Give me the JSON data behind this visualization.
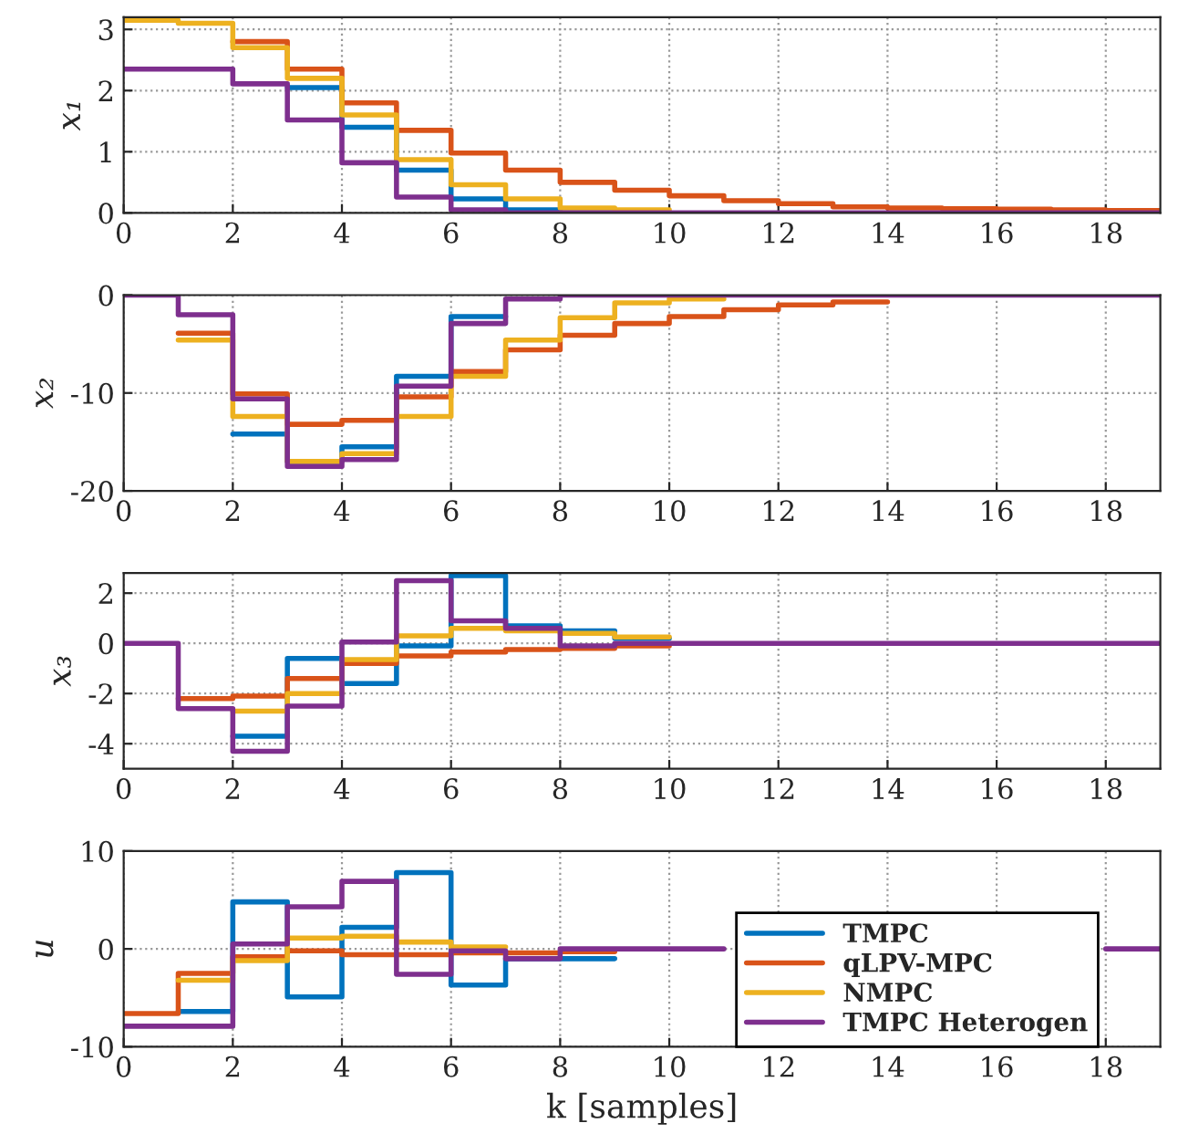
{
  "chart_data": [
    {
      "type": "step",
      "ylabel": "x₁",
      "x": [
        0,
        1,
        2,
        3,
        4,
        5,
        6,
        7,
        8,
        9,
        10,
        11,
        12,
        13,
        14,
        15,
        16,
        17,
        18,
        19
      ],
      "xlim": [
        0,
        19
      ],
      "xticks": [
        0,
        2,
        4,
        6,
        8,
        10,
        12,
        14,
        16,
        18
      ],
      "ylim": [
        0,
        3.2
      ],
      "yticks": [
        0,
        1,
        2,
        3
      ],
      "grid": true,
      "line_style": "solid",
      "series": [
        {
          "color": "#0072bd",
          "values": [
            null,
            null,
            null,
            2.05,
            1.4,
            0.7,
            0.23,
            0.05,
            0,
            0,
            null,
            null,
            null,
            null,
            null,
            null,
            null,
            null,
            null,
            null
          ]
        },
        {
          "color": "#d95319",
          "values": [
            null,
            null,
            2.8,
            2.35,
            1.8,
            1.35,
            0.98,
            0.7,
            0.5,
            0.37,
            0.28,
            0.2,
            0.15,
            0.1,
            0.08,
            0.07,
            0.06,
            0.05,
            0.04,
            0.04
          ]
        },
        {
          "color": "#edb120",
          "values": [
            3.15,
            3.1,
            2.7,
            2.2,
            1.6,
            0.87,
            0.46,
            0.23,
            0.08,
            0.05,
            0.05,
            null,
            null,
            null,
            null,
            null,
            null,
            null,
            null,
            null
          ]
        },
        {
          "color": "#7e2f8e",
          "values": [
            2.35,
            2.35,
            2.11,
            1.52,
            0.82,
            0.26,
            0.05,
            0,
            0,
            0,
            0,
            0,
            0,
            0,
            0,
            0,
            0,
            0,
            0,
            0
          ]
        }
      ]
    },
    {
      "type": "step",
      "ylabel": "x₂",
      "x": [
        0,
        1,
        2,
        3,
        4,
        5,
        6,
        7,
        8,
        9,
        10,
        11,
        12,
        13,
        14,
        15,
        16,
        17,
        18,
        19
      ],
      "xlim": [
        0,
        19
      ],
      "xticks": [
        0,
        2,
        4,
        6,
        8,
        10,
        12,
        14,
        16,
        18
      ],
      "ylim": [
        -20,
        0
      ],
      "yticks": [
        -20,
        -10,
        0
      ],
      "grid": true,
      "line_style": "solid",
      "series": [
        {
          "color": "#0072bd",
          "values": [
            null,
            null,
            -14.2,
            -17,
            -15.5,
            -8.3,
            -2.2,
            -2.2,
            null,
            null,
            null,
            null,
            null,
            null,
            null,
            null,
            null,
            null,
            null,
            null
          ]
        },
        {
          "color": "#d95319",
          "values": [
            null,
            -3.9,
            -10.1,
            -13.2,
            -12.8,
            -10.4,
            -7.8,
            -5.6,
            -4.1,
            -2.9,
            -2.2,
            -1.5,
            -1,
            -0.7,
            -0.7,
            null,
            null,
            null,
            null,
            null
          ]
        },
        {
          "color": "#edb120",
          "values": [
            null,
            -4.6,
            -12.4,
            -17,
            -16.2,
            -12.4,
            -8.3,
            -4.6,
            -2.3,
            -0.8,
            -0.4,
            -0.4,
            null,
            null,
            null,
            null,
            null,
            null,
            null,
            null
          ]
        },
        {
          "color": "#7e2f8e",
          "values": [
            0,
            -2,
            -10.6,
            -17.5,
            -16.8,
            -9.3,
            -2.9,
            -0.4,
            0,
            0,
            0,
            0,
            0,
            0,
            0,
            0,
            0,
            0,
            0,
            0
          ]
        }
      ]
    },
    {
      "type": "step",
      "ylabel": "x₃",
      "x": [
        0,
        1,
        2,
        3,
        4,
        5,
        6,
        7,
        8,
        9,
        10,
        11,
        12,
        13,
        14,
        15,
        16,
        17,
        18,
        19
      ],
      "xlim": [
        0,
        19
      ],
      "xticks": [
        0,
        2,
        4,
        6,
        8,
        10,
        12,
        14,
        16,
        18
      ],
      "ylim": [
        -5,
        2.8
      ],
      "yticks": [
        -4,
        -2,
        0,
        2
      ],
      "grid": true,
      "line_style": "solid",
      "series": [
        {
          "color": "#0072bd",
          "values": [
            null,
            null,
            -3.7,
            -0.6,
            -1.6,
            -0.1,
            2.7,
            0.7,
            0.5,
            0.2,
            0.2,
            null,
            null,
            null,
            null,
            null,
            null,
            null,
            null,
            null
          ]
        },
        {
          "color": "#d95319",
          "values": [
            null,
            -2.2,
            -2.1,
            -1.4,
            -0.8,
            -0.5,
            -0.35,
            -0.25,
            -0.2,
            -0.1,
            -0.1,
            null,
            null,
            null,
            null,
            null,
            null,
            null,
            null,
            null
          ]
        },
        {
          "color": "#edb120",
          "values": [
            null,
            null,
            -2.7,
            -2,
            -0.65,
            0.3,
            0.6,
            0.5,
            0.4,
            0.25,
            0.25,
            null,
            null,
            null,
            null,
            null,
            null,
            null,
            null,
            null
          ]
        },
        {
          "color": "#7e2f8e",
          "values": [
            0,
            -2.6,
            -4.3,
            -2.5,
            0.05,
            2.5,
            0.9,
            0.6,
            -0.1,
            0,
            0,
            0,
            0,
            0,
            0,
            0,
            0,
            0,
            0,
            0
          ]
        }
      ]
    },
    {
      "type": "step",
      "ylabel": "u",
      "xlabel": "k [samples]",
      "x": [
        0,
        1,
        2,
        3,
        4,
        5,
        6,
        7,
        8,
        9,
        10,
        11,
        12,
        13,
        14,
        15,
        16,
        17,
        18,
        19
      ],
      "xlim": [
        0,
        19
      ],
      "xticks": [
        0,
        2,
        4,
        6,
        8,
        10,
        12,
        14,
        16,
        18
      ],
      "ylim": [
        -10,
        10
      ],
      "yticks": [
        -10,
        0,
        10
      ],
      "grid": true,
      "line_style": "solid",
      "legend": "bottom right",
      "series": [
        {
          "name": "TMPC",
          "color": "#0072bd",
          "values": [
            null,
            -6.4,
            4.8,
            -4.9,
            2.2,
            7.8,
            -3.7,
            -1,
            -1,
            -1,
            null,
            null,
            null,
            null,
            null,
            null,
            null,
            null,
            null,
            null
          ]
        },
        {
          "name": "qLPV-MPC",
          "color": "#d95319",
          "values": [
            -6.6,
            -2.5,
            -0.8,
            -0.2,
            -0.6,
            -0.6,
            -0.4,
            -0.4,
            -0.3,
            -0.3,
            null,
            null,
            null,
            null,
            null,
            null,
            null,
            null,
            null,
            null
          ]
        },
        {
          "name": "NMPC",
          "color": "#edb120",
          "values": [
            null,
            -3.2,
            -1.2,
            1.1,
            1.3,
            0.7,
            0.2,
            0.2,
            null,
            null,
            null,
            null,
            null,
            null,
            null,
            null,
            null,
            null,
            null,
            null
          ]
        },
        {
          "name": "TMPC Heterogen",
          "color": "#7e2f8e",
          "values": [
            -7.9,
            -7.9,
            0.5,
            4.3,
            6.9,
            -2.6,
            -0.2,
            -1,
            0,
            0,
            0,
            0,
            null,
            null,
            null,
            null,
            null,
            null,
            0,
            0
          ]
        }
      ]
    }
  ]
}
